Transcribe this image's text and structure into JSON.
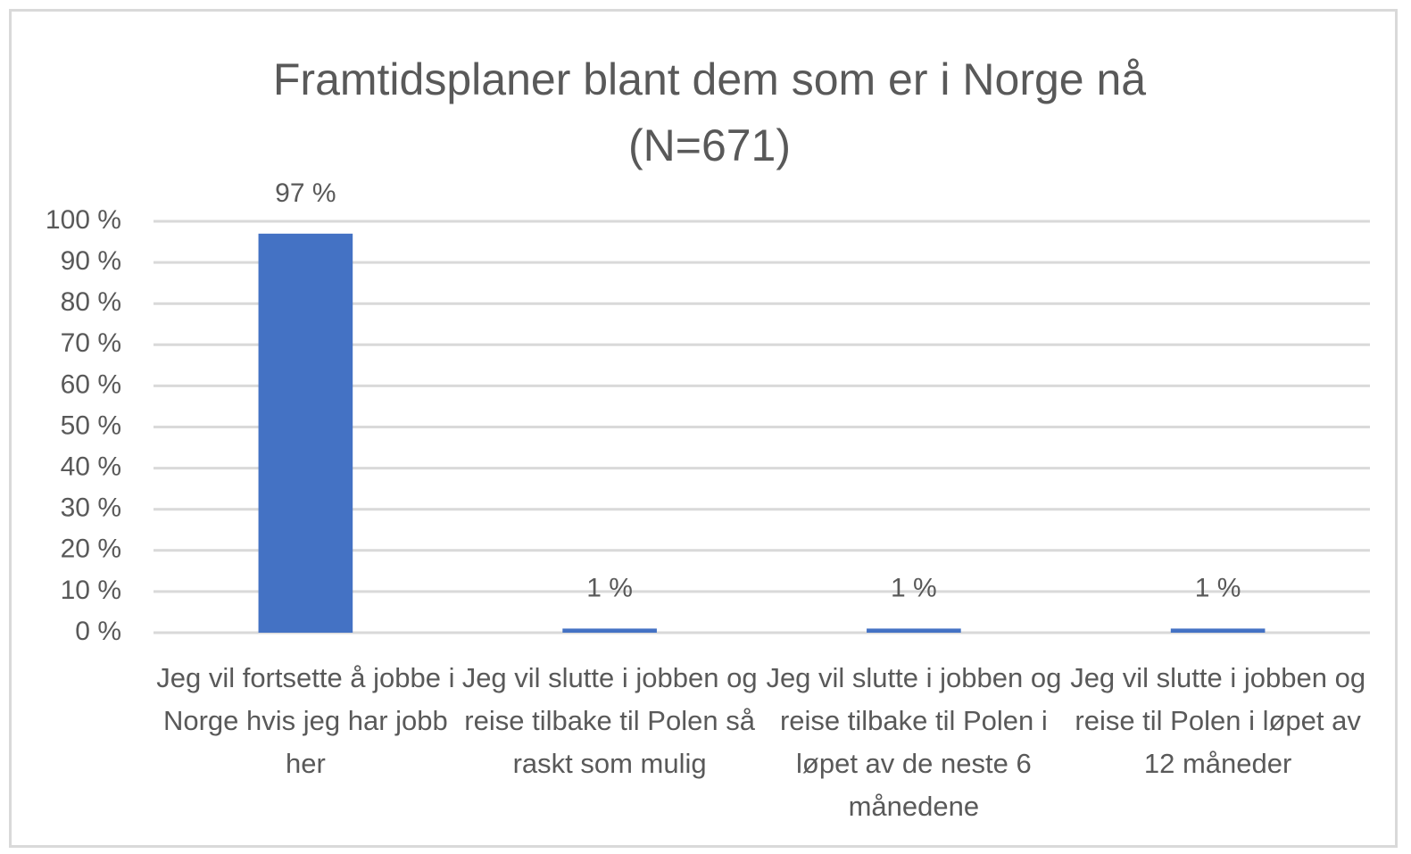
{
  "chart_data": {
    "type": "bar",
    "title": "Framtidsplaner blant dem som er i Norge nå (N=671)",
    "categories": [
      "Jeg vil fortsette å jobbe i Norge hvis jeg har jobb her",
      "Jeg vil slutte i jobben og reise tilbake til Polen så raskt som mulig",
      "Jeg vil slutte i jobben og reise tilbake til Polen i løpet av de neste 6 månedene",
      "Jeg vil slutte i jobben og reise til Polen i løpet av 12 måneder"
    ],
    "values": [
      97,
      1,
      1,
      1
    ],
    "value_labels": [
      "97 %",
      "1 %",
      "1 %",
      "1 %"
    ],
    "color": "#4472c4",
    "ylim": [
      0,
      100
    ],
    "yticks": [
      {
        "value": 0,
        "label": "0 %"
      },
      {
        "value": 10,
        "label": "10 %"
      },
      {
        "value": 20,
        "label": "20 %"
      },
      {
        "value": 30,
        "label": "30 %"
      },
      {
        "value": 40,
        "label": "40 %"
      },
      {
        "value": 50,
        "label": "50 %"
      },
      {
        "value": 60,
        "label": "60 %"
      },
      {
        "value": 70,
        "label": "70 %"
      },
      {
        "value": 80,
        "label": "80 %"
      },
      {
        "value": 90,
        "label": "90 %"
      },
      {
        "value": 100,
        "label": "100 %"
      }
    ],
    "grid": true
  }
}
